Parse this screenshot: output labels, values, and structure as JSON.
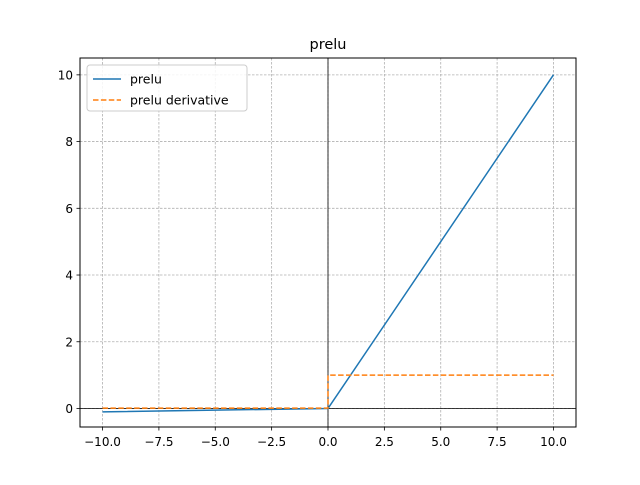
{
  "chart_data": {
    "type": "line",
    "title": "prelu",
    "xlabel": "",
    "ylabel": "",
    "xlim": [
      -10.999,
      10.999
    ],
    "ylim": [
      -0.555,
      10.505
    ],
    "x_ticks": [
      -10.0,
      -7.5,
      -5.0,
      -2.5,
      0.0,
      2.5,
      5.0,
      7.5,
      10.0
    ],
    "x_tick_labels": [
      "−10.0",
      "−7.5",
      "−5.0",
      "−2.5",
      "0.0",
      "2.5",
      "5.0",
      "7.5",
      "10.0"
    ],
    "y_ticks": [
      0,
      2,
      4,
      6,
      8,
      10
    ],
    "y_tick_labels": [
      "0",
      "2",
      "4",
      "6",
      "8",
      "10"
    ],
    "grid": true,
    "reference_lines": {
      "x": 0,
      "y": 0
    },
    "legend_position": "top-left",
    "series": [
      {
        "name": "prelu",
        "style": "solid",
        "color": "#1f77b4",
        "x": [
          -10,
          0,
          10
        ],
        "y": [
          -0.1,
          0,
          10
        ]
      },
      {
        "name": "prelu derivative",
        "style": "dashed",
        "color": "#ff7f0e",
        "x": [
          -10,
          0,
          0,
          10
        ],
        "y": [
          0.01,
          0.01,
          1,
          1
        ]
      }
    ]
  }
}
